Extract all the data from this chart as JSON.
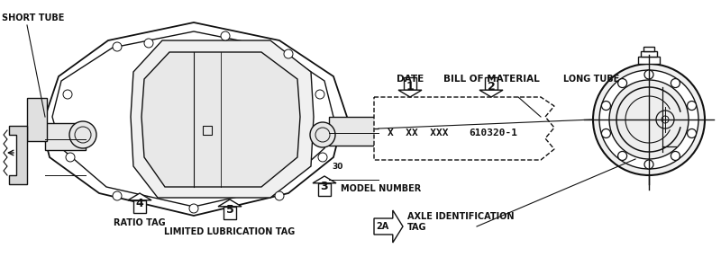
{
  "bg_color": "#ffffff",
  "black": "#111111",
  "labels": {
    "short_tube": "SHORT TUBE",
    "long_tube": "LONG TUBE",
    "date": "DATE",
    "bill_of_material": "BILL OF MATERIAL",
    "ratio_tag": "RATIO TAG",
    "limited_lube": "LIMITED LUBRICATION TAG",
    "model_number": "MODEL NUMBER",
    "axle_id": "AXLE IDENTIFICATION\nTAG",
    "x_xx_xxx": "X  XX  XXX",
    "bom_num": "610320-1",
    "num_30": "30"
  },
  "figsize": [
    8.0,
    2.86
  ],
  "dpi": 100
}
